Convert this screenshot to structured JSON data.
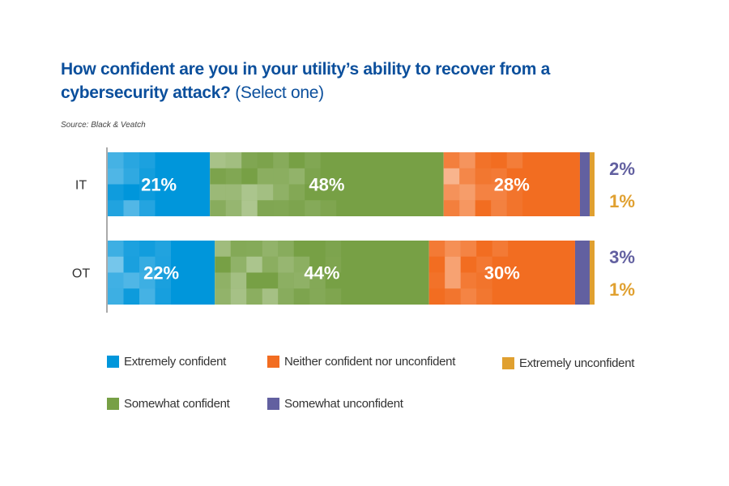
{
  "title": {
    "main": "How confident are you in your utility’s ability to recover from a cybersecurity attack?",
    "suffix": "(Select one)"
  },
  "source": "Source: Black & Veatch",
  "chart_data": {
    "type": "bar",
    "orientation": "horizontal",
    "stacked": true,
    "categories": [
      "IT",
      "OT"
    ],
    "series": [
      {
        "name": "Extremely confident",
        "color": "#0096db",
        "values": [
          21,
          22
        ]
      },
      {
        "name": "Somewhat confident",
        "color": "#77a045",
        "values": [
          48,
          44
        ]
      },
      {
        "name": "Neither confident nor unconfident",
        "color": "#f26d21",
        "values": [
          28,
          30
        ]
      },
      {
        "name": "Somewhat unconfident",
        "color": "#6260a0",
        "values": [
          2,
          3
        ]
      },
      {
        "name": "Extremely unconfident",
        "color": "#e0a030",
        "values": [
          1,
          1
        ]
      }
    ],
    "data_labels": {
      "IT": [
        "21%",
        "48%",
        "28%",
        "2%",
        "1%"
      ],
      "OT": [
        "22%",
        "44%",
        "30%",
        "3%",
        "1%"
      ]
    },
    "xlim": [
      0,
      100
    ],
    "grid": false,
    "legend_position": "bottom"
  }
}
